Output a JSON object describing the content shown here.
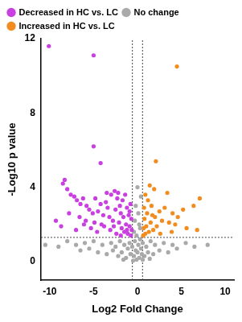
{
  "chart_data": {
    "type": "scatter",
    "x_label": "Log2 Fold Change",
    "y_label": "-Log10 p value",
    "xlim": [
      -11,
      11
    ],
    "ylim": [
      -1,
      12
    ],
    "xticks": [
      -10,
      -5,
      0,
      5,
      10
    ],
    "yticks": [
      0,
      4,
      8,
      12
    ],
    "grid": false,
    "legend": "top",
    "marker": "circle",
    "threshold_lines": {
      "x": [
        -0.58,
        0.58
      ],
      "y": 1.3
    },
    "series": [
      {
        "name": "Decreased in HC vs. LC",
        "color": "#c93fe0",
        "x": [
          -10.1,
          -5,
          -5,
          -4.2,
          -8.3,
          -8.5,
          -8,
          -7.6,
          -7.2,
          -6.9,
          -6.5,
          -6.2,
          -5.8,
          -5.5,
          -5.1,
          -4.8,
          -4.5,
          -4.2,
          -3.9,
          -3.6,
          -3.4,
          -3.2,
          -3,
          -2.8,
          -2.6,
          -2.5,
          -2.3,
          -2.1,
          -2,
          -1.9,
          -1.8,
          -1.7,
          -1.6,
          -1.5,
          -1.4,
          -1.3,
          -1.2,
          -1.1,
          -1,
          -0.9,
          -0.8,
          -0.75,
          -0.7,
          -0.65,
          -2.4,
          -3.1,
          -3.8,
          -4.6,
          -5.3,
          -6.1,
          -7,
          -7.8,
          -8.7,
          -9.3,
          -6.6,
          -5.9,
          -4.9,
          -4.1,
          -2.7,
          -1.9,
          -1.2,
          -0.9,
          -3.5,
          -2.2
        ],
        "values": [
          11.6,
          11.1,
          6.2,
          5.3,
          4.4,
          4.2,
          3.9,
          3.6,
          3.5,
          3.3,
          3.1,
          3.4,
          3.0,
          2.8,
          2.6,
          3.4,
          2.7,
          3.1,
          2.5,
          3.2,
          2.9,
          2.4,
          3.6,
          2.2,
          3.8,
          2.8,
          3.4,
          2.1,
          3.0,
          2.6,
          1.8,
          3.3,
          2.4,
          1.6,
          3.6,
          2.0,
          2.9,
          1.5,
          2.5,
          1.9,
          3.1,
          1.4,
          2.3,
          1.7,
          1.5,
          1.7,
          1.9,
          1.6,
          1.8,
          2.0,
          1.7,
          2.6,
          1.9,
          2.2,
          2.4,
          2.2,
          2.1,
          2.0,
          1.9,
          1.4,
          1.7,
          2.7,
          3.7,
          3.7
        ]
      },
      {
        "name": "No change",
        "color": "#a9a9a9",
        "x": [
          -9,
          -8,
          -7,
          -6.5,
          -6,
          -5.5,
          -5,
          -4.5,
          -4,
          -3.5,
          -3,
          -2.8,
          -2.5,
          -2.2,
          -2,
          -1.8,
          -1.5,
          -1.3,
          -1.1,
          -0.9,
          -0.8,
          -0.6,
          -0.4,
          -0.3,
          -0.2,
          -0.1,
          0,
          0.1,
          0.2,
          0.3,
          0.4,
          0.5,
          0.6,
          0.8,
          1,
          1.2,
          1.5,
          1.8,
          2,
          2.5,
          3,
          3.5,
          4,
          4.5,
          5.5,
          6.5,
          8,
          -0.3,
          -0.2,
          0.1,
          0.3,
          0.4,
          -0.4,
          0,
          0.2,
          -0.1,
          -10.5,
          -1.6,
          1.4,
          -0.5,
          0.6
        ],
        "values": [
          0.8,
          1.1,
          0.9,
          0.6,
          1.0,
          0.7,
          1.1,
          0.5,
          0.9,
          0.4,
          1.0,
          0.6,
          0.8,
          0.3,
          1.1,
          0.5,
          0.9,
          0.2,
          0.7,
          1.0,
          0.4,
          0.8,
          0.3,
          1.1,
          0.6,
          0.1,
          0.5,
          0.9,
          0.2,
          1.2,
          0.7,
          0.4,
          1.0,
          0.3,
          0.8,
          0.5,
          1.1,
          0.4,
          0.9,
          0.6,
          1.0,
          0.5,
          0.9,
          0.7,
          1.0,
          0.8,
          0.9,
          2.2,
          3.0,
          2.6,
          1.8,
          3.5,
          1.6,
          4.0,
          2.0,
          1.4,
          0.9,
          0.1,
          0.15,
          0.05,
          0.1
        ]
      },
      {
        "name": "Increased in HC vs. LC",
        "color": "#f28c1e",
        "x": [
          4.5,
          2.1,
          1.4,
          3.4,
          7.1,
          6.4,
          5.2,
          4.6,
          4,
          3.6,
          3.1,
          2.8,
          2.5,
          2.2,
          2,
          1.8,
          1.6,
          1.5,
          1.3,
          1.1,
          1,
          0.9,
          0.8,
          0.7,
          0.65,
          1.2,
          0.9,
          1.9,
          2.6,
          3.9,
          5.6,
          6.8,
          4.3,
          0.75,
          1.7
        ],
        "values": [
          10.5,
          5.4,
          4.1,
          3.7,
          3.4,
          3.0,
          2.8,
          2.4,
          2.6,
          2.1,
          2.9,
          2.2,
          2.7,
          1.9,
          2.4,
          1.7,
          3.0,
          2.1,
          1.6,
          2.6,
          1.9,
          1.5,
          2.3,
          1.8,
          1.4,
          3.3,
          3.6,
          3.9,
          1.5,
          1.6,
          1.8,
          1.7,
          2.0,
          2.9,
          2.5
        ]
      }
    ]
  }
}
